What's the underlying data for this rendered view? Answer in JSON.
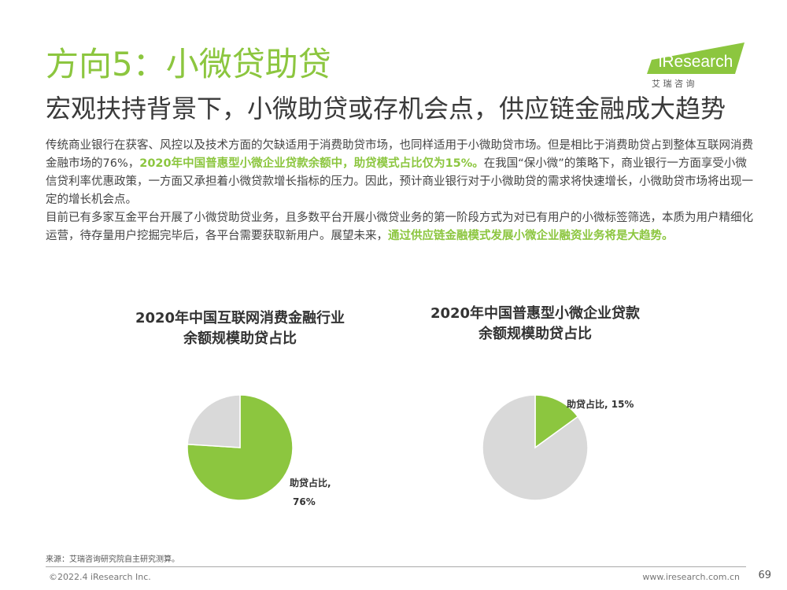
{
  "header": {
    "title": "方向5：小微贷助贷",
    "subtitle": "宏观扶持背景下，小微助贷或存机会点，供应链金融成大趋势"
  },
  "logo": {
    "brand": "iResearch",
    "cn": "艾 瑞 咨 询",
    "color": "#8cc63f"
  },
  "body": {
    "p1_a": "传统商业银行在获客、风控以及技术方面的欠缺适用于消费助贷市场，也同样适用于小微助贷市场。但是相比于消费助贷占到整体互联网消费金融市场的76%，",
    "p1_b": "2020年中国普惠型小微企业贷款余额中，助贷模式占比仅为15%。",
    "p1_c": "在我国“保小微”的策略下，商业银行一方面享受小微信贷利率优惠政策，一方面又承担着小微贷款增长指标的压力。因此，预计商业银行对于小微助贷的需求将快速增长，小微助贷市场将出现一定的增长机会点。",
    "p2_a": "目前已有多家互金平台开展了小微贷助贷业务，且多数平台开展小微贷业务的第一阶段方式为对已有用户的小微标签筛选，本质为用户精细化运营，待存量用户挖掘完毕后，各平台需要获取新用户。展望未来，",
    "p2_b": "通过供应链金融模式发展小微企业融资业务将是大趋势。"
  },
  "chart_data": [
    {
      "type": "pie",
      "title_line1": "2020年中国互联网消费金融行业",
      "title_line2": "余额规模助贷占比",
      "slices": [
        {
          "label": "助贷占比,",
          "label2": "76%",
          "value": 76,
          "color": "#8cc63f"
        },
        {
          "label": "",
          "value": 24,
          "color": "#d9d9d9"
        }
      ]
    },
    {
      "type": "pie",
      "title_line1": "2020年中国普惠型小微企业贷款",
      "title_line2": "余额规模助贷占比",
      "slices": [
        {
          "label": "助贷占比, 15%",
          "value": 15,
          "color": "#8cc63f"
        },
        {
          "label": "",
          "value": 85,
          "color": "#d9d9d9"
        }
      ]
    }
  ],
  "footer": {
    "source": "来源：艾瑞咨询研究院自主研究测算。",
    "copyright": "©2022.4 iResearch Inc.",
    "url": "www.iresearch.com.cn",
    "page": "69"
  }
}
